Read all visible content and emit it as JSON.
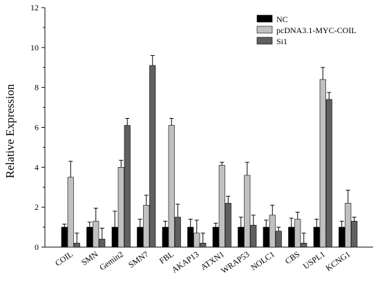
{
  "chart_data": {
    "type": "bar",
    "title": "",
    "xlabel": "",
    "ylabel": "Relative Expression",
    "ylim": [
      0,
      12
    ],
    "yticks": [
      0,
      2,
      4,
      6,
      8,
      10,
      12
    ],
    "grid": false,
    "legend_position": "top-right",
    "categories": [
      "COIL",
      "SMN",
      "Gemin2",
      "SMN7",
      "FBL",
      "AKAP13",
      "ATXN1",
      "WRAP53",
      "NOLC1",
      "CBS",
      "USPL1",
      "KCNG1"
    ],
    "series": [
      {
        "name": "NC",
        "color": "#000000",
        "values": [
          1.0,
          1.0,
          1.0,
          1.0,
          1.0,
          1.0,
          1.0,
          1.0,
          1.0,
          1.0,
          1.0,
          1.0
        ],
        "errors": [
          0.15,
          0.25,
          0.8,
          0.4,
          0.3,
          0.4,
          0.2,
          0.5,
          0.35,
          0.45,
          0.4,
          0.3
        ]
      },
      {
        "name": "pcDNA3.1-MYC-COIL",
        "color": "#c0c0c0",
        "values": [
          3.5,
          1.3,
          4.0,
          2.1,
          6.1,
          0.7,
          4.1,
          3.6,
          1.6,
          1.4,
          8.4,
          2.2
        ],
        "errors": [
          0.8,
          0.65,
          0.35,
          0.5,
          0.35,
          0.65,
          0.15,
          0.65,
          0.5,
          0.35,
          0.6,
          0.65
        ]
      },
      {
        "name": "Si1",
        "color": "#606060",
        "values": [
          0.2,
          0.4,
          6.1,
          9.1,
          1.5,
          0.2,
          2.2,
          1.1,
          0.8,
          0.2,
          7.4,
          1.3
        ],
        "errors": [
          0.5,
          0.55,
          0.35,
          0.5,
          0.65,
          0.5,
          0.35,
          0.5,
          0.2,
          0.5,
          0.35,
          0.2
        ]
      }
    ]
  }
}
